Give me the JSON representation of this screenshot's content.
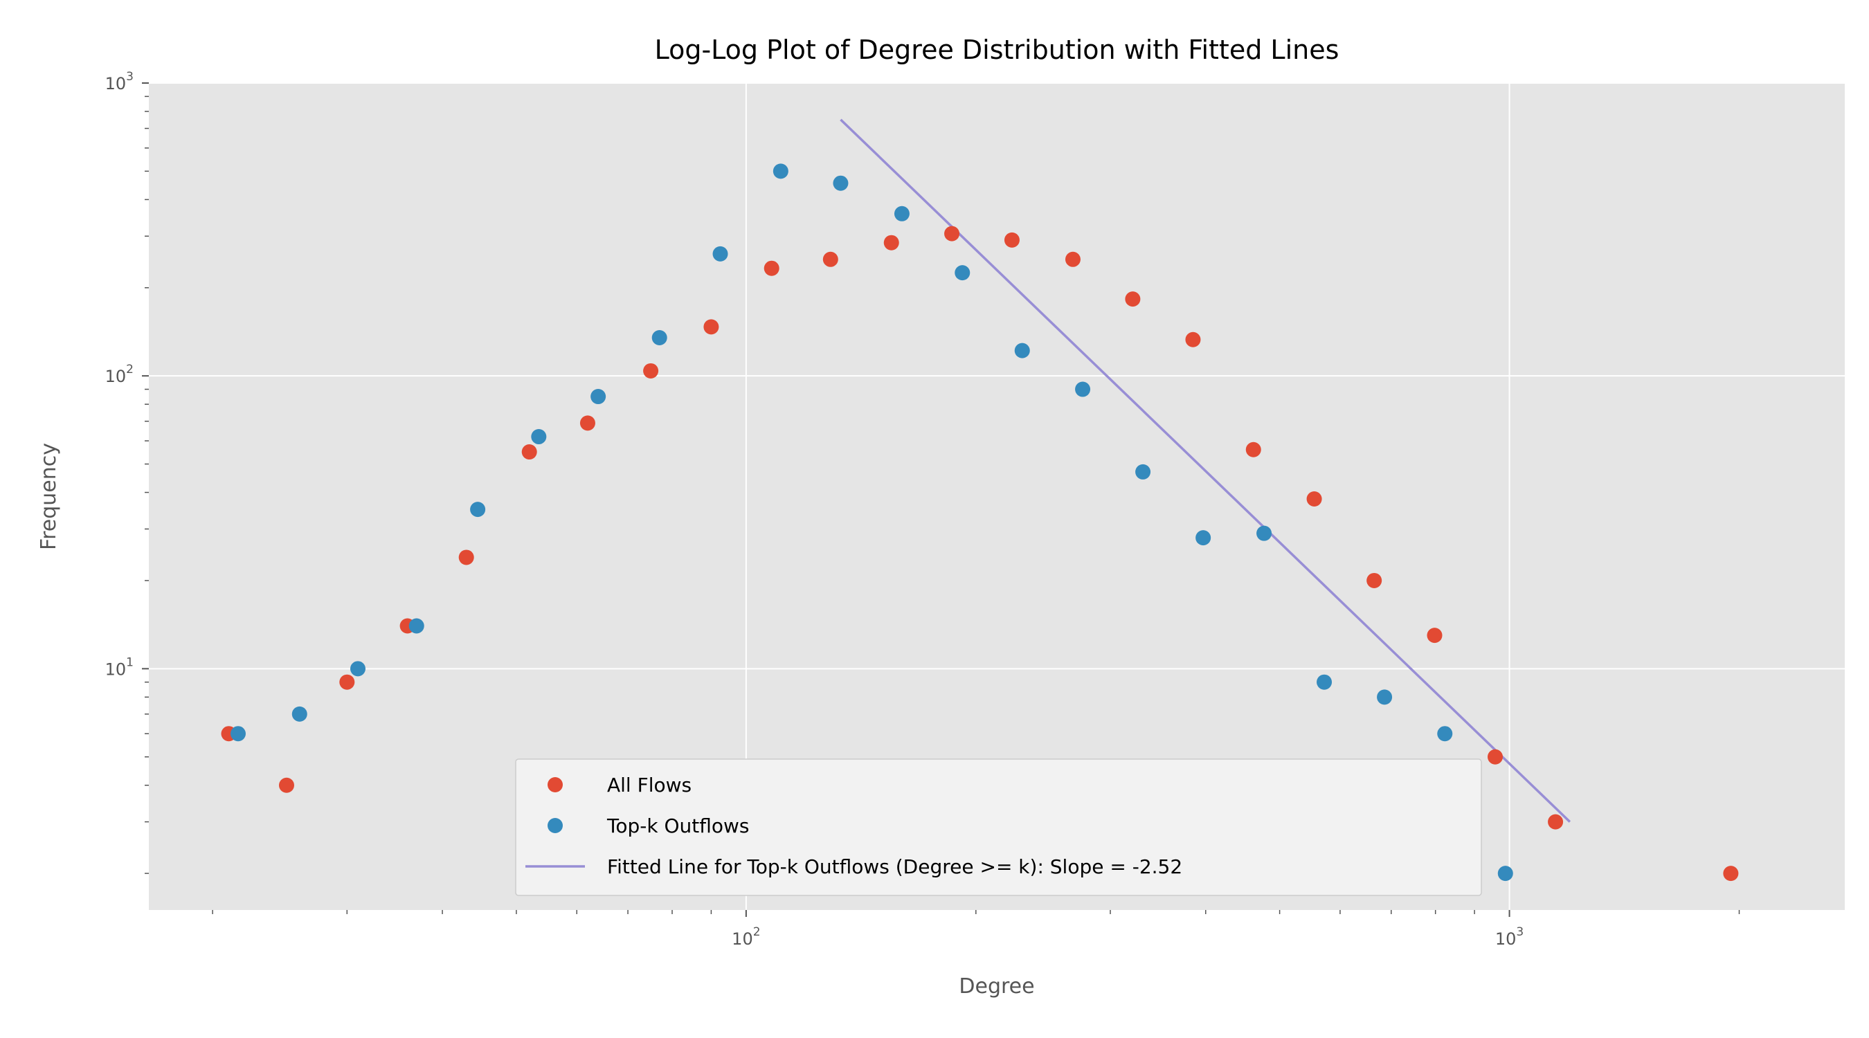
{
  "chart_data": {
    "type": "scatter",
    "title": "Log-Log Plot of Degree Distribution with Fitted Lines",
    "xlabel": "Degree",
    "ylabel": "Frequency",
    "xscale": "log",
    "yscale": "log",
    "xlim": [
      16.5,
      2750
    ],
    "ylim": [
      1.5,
      1000
    ],
    "grid": true,
    "legend_position": "lower-center",
    "x_ticks": [
      {
        "value": 100,
        "base": "10",
        "exp": "2"
      },
      {
        "value": 1000,
        "base": "10",
        "exp": "3"
      }
    ],
    "y_ticks": [
      {
        "value": 10,
        "base": "10",
        "exp": "1"
      },
      {
        "value": 100,
        "base": "10",
        "exp": "2"
      },
      {
        "value": 1000,
        "base": "10",
        "exp": "3"
      }
    ],
    "series": [
      {
        "name": "All Flows",
        "kind": "scatter",
        "color": "#E24A33",
        "points": [
          [
            21,
            6
          ],
          [
            25,
            4
          ],
          [
            30,
            9
          ],
          [
            36,
            14
          ],
          [
            43,
            24
          ],
          [
            52,
            55
          ],
          [
            62,
            69
          ],
          [
            75,
            104
          ],
          [
            90,
            147
          ],
          [
            108,
            233
          ],
          [
            129,
            250
          ],
          [
            155,
            285
          ],
          [
            186,
            306
          ],
          [
            223,
            291
          ],
          [
            268,
            250
          ],
          [
            321,
            183
          ],
          [
            385,
            133
          ],
          [
            462,
            56
          ],
          [
            555,
            38
          ],
          [
            665,
            20
          ],
          [
            798,
            13
          ],
          [
            958,
            5
          ],
          [
            1149,
            3
          ],
          [
            1950,
            2
          ]
        ]
      },
      {
        "name": "Top-k Outflows",
        "kind": "scatter",
        "color": "#348ABD",
        "points": [
          [
            21.6,
            6
          ],
          [
            26,
            7
          ],
          [
            31,
            10
          ],
          [
            37,
            14
          ],
          [
            44.5,
            35
          ],
          [
            53.5,
            62
          ],
          [
            64,
            85
          ],
          [
            77,
            135
          ],
          [
            92.5,
            261
          ],
          [
            111,
            500
          ],
          [
            133,
            455
          ],
          [
            160,
            358
          ],
          [
            192,
            225
          ],
          [
            230,
            122
          ],
          [
            276,
            90
          ],
          [
            331,
            47
          ],
          [
            397,
            28
          ],
          [
            477,
            29
          ],
          [
            572,
            9
          ],
          [
            686,
            8
          ],
          [
            823,
            6
          ],
          [
            988,
            2
          ]
        ]
      },
      {
        "name": "Fitted Line for Top-k Outflows (Degree >= k): Slope = -2.52",
        "kind": "line",
        "color": "#988ED5",
        "slope": -2.52,
        "points": [
          [
            133,
            750
          ],
          [
            1200,
            3
          ]
        ]
      }
    ]
  }
}
